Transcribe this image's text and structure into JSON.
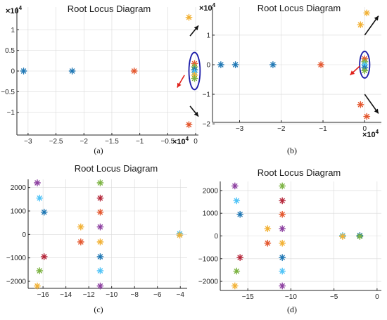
{
  "figure": {
    "panel_titles": [
      "Root Locus Diagram",
      "Root Locus Diagram",
      "Root Locus Diagram",
      "Root Locus Diagram"
    ],
    "captions": [
      "(a)",
      "(b)",
      "(c)",
      "(d)"
    ],
    "exponent_label": "×10⁴",
    "exponent_base": "×10",
    "exponent_power": "4"
  },
  "colors": {
    "blue": "#1f77b4",
    "orange": "#e4572e",
    "yellow": "#f2b134",
    "purple": "#8c3fa0",
    "green": "#7cb342",
    "cyan": "#4fc3f7",
    "crimson": "#b5273a",
    "red_arrow": "#e0211b",
    "black_arrow": "#111111",
    "ellipse": "#1a1aa8"
  },
  "chart_data": [
    {
      "id": "a",
      "type": "scatter",
      "xlim": [
        -3.2,
        0.05
      ],
      "ylim": [
        -1.55,
        1.55
      ],
      "xticks": [
        -3,
        -2.5,
        -2,
        -1.5,
        -1,
        -0.5,
        0
      ],
      "xtick_labels": [
        "−3",
        "−2.5",
        "−2",
        "−1.5",
        "−1",
        "−0.5",
        "0"
      ],
      "yticks": [
        -1,
        -0.5,
        0,
        0.5,
        1
      ],
      "ytick_labels": [
        "−1",
        "−0.5",
        "0",
        "0.5",
        "1"
      ],
      "points": [
        {
          "x": -3.08,
          "y": 0,
          "c": "blue"
        },
        {
          "x": -2.21,
          "y": 0,
          "c": "blue"
        },
        {
          "x": -1.1,
          "y": 0,
          "c": "orange"
        },
        {
          "x": -0.12,
          "y": 1.3,
          "c": "yellow"
        },
        {
          "x": -0.12,
          "y": -1.3,
          "c": "orange"
        },
        {
          "x": -0.02,
          "y": 0.18,
          "c": "orange"
        },
        {
          "x": -0.02,
          "y": 0.1,
          "c": "green"
        },
        {
          "x": -0.02,
          "y": 0.03,
          "c": "blue"
        },
        {
          "x": -0.02,
          "y": -0.03,
          "c": "cyan"
        },
        {
          "x": -0.02,
          "y": -0.1,
          "c": "yellow"
        },
        {
          "x": -0.02,
          "y": -0.18,
          "c": "green"
        }
      ],
      "ellipse": {
        "cx": -0.02,
        "cy": 0,
        "rx": 0.1,
        "ry": 0.45
      },
      "arrows": [
        {
          "x1": -0.1,
          "y1": 0.85,
          "x2": 0.05,
          "y2": 1.1,
          "c": "black_arrow"
        },
        {
          "x1": -0.1,
          "y1": -0.85,
          "x2": 0.05,
          "y2": -1.1,
          "c": "black_arrow"
        },
        {
          "x1": -0.2,
          "y1": -0.1,
          "x2": -0.33,
          "y2": -0.4,
          "c": "red_arrow"
        }
      ]
    },
    {
      "id": "b",
      "type": "scatter",
      "xlim": [
        -3.65,
        0.4
      ],
      "ylim": [
        -1.95,
        1.95
      ],
      "xticks": [
        -3,
        -2,
        -1,
        0
      ],
      "xtick_labels": [
        "−3",
        "−2",
        "−1",
        "0"
      ],
      "yticks": [
        -2,
        -1,
        0,
        1
      ],
      "ytick_labels": [
        "−2",
        "−1",
        "0",
        "1"
      ],
      "points": [
        {
          "x": -3.45,
          "y": 0,
          "c": "blue"
        },
        {
          "x": -3.1,
          "y": 0,
          "c": "blue"
        },
        {
          "x": -2.2,
          "y": 0,
          "c": "blue"
        },
        {
          "x": -1.05,
          "y": 0,
          "c": "orange"
        },
        {
          "x": 0.05,
          "y": 1.75,
          "c": "yellow"
        },
        {
          "x": -0.1,
          "y": 1.35,
          "c": "yellow"
        },
        {
          "x": -0.1,
          "y": -1.35,
          "c": "orange"
        },
        {
          "x": 0.05,
          "y": -1.75,
          "c": "orange"
        },
        {
          "x": 0.0,
          "y": 0.2,
          "c": "orange"
        },
        {
          "x": 0.0,
          "y": 0.1,
          "c": "green"
        },
        {
          "x": 0.0,
          "y": 0.0,
          "c": "cyan"
        },
        {
          "x": 0.0,
          "y": -0.1,
          "c": "blue"
        },
        {
          "x": 0.0,
          "y": -0.2,
          "c": "green"
        }
      ],
      "ellipse": {
        "cx": 0.0,
        "cy": 0,
        "rx": 0.12,
        "ry": 0.45
      },
      "arrows": [
        {
          "x1": 0.0,
          "y1": 1.0,
          "x2": 0.33,
          "y2": 1.65,
          "c": "black_arrow"
        },
        {
          "x1": 0.0,
          "y1": -1.0,
          "x2": 0.33,
          "y2": -1.65,
          "c": "black_arrow"
        },
        {
          "x1": -0.12,
          "y1": -0.05,
          "x2": -0.35,
          "y2": -0.35,
          "c": "red_arrow"
        }
      ]
    },
    {
      "id": "c",
      "type": "scatter",
      "xlim": [
        -17.3,
        -3.4
      ],
      "ylim": [
        -2300,
        2350
      ],
      "xticks": [
        -16,
        -14,
        -12,
        -10,
        -8,
        -6,
        -4
      ],
      "xtick_labels": [
        "−16",
        "−14",
        "−12",
        "−10",
        "−8",
        "−6",
        "−4"
      ],
      "yticks": [
        -2000,
        -1000,
        0,
        1000,
        2000
      ],
      "ytick_labels": [
        "−2000",
        "−1000",
        "0",
        "1000",
        "2000"
      ],
      "points": [
        {
          "x": -16.5,
          "y": 2200,
          "c": "purple"
        },
        {
          "x": -16.3,
          "y": 1550,
          "c": "cyan"
        },
        {
          "x": -15.9,
          "y": 950,
          "c": "blue"
        },
        {
          "x": -15.9,
          "y": -950,
          "c": "crimson"
        },
        {
          "x": -16.3,
          "y": -1550,
          "c": "green"
        },
        {
          "x": -16.5,
          "y": -2200,
          "c": "yellow"
        },
        {
          "x": -12.7,
          "y": 320,
          "c": "yellow"
        },
        {
          "x": -12.7,
          "y": -320,
          "c": "orange"
        },
        {
          "x": -11.0,
          "y": 2200,
          "c": "green"
        },
        {
          "x": -11.0,
          "y": 1550,
          "c": "crimson"
        },
        {
          "x": -11.0,
          "y": 950,
          "c": "orange"
        },
        {
          "x": -11.0,
          "y": 320,
          "c": "purple"
        },
        {
          "x": -11.0,
          "y": -320,
          "c": "yellow"
        },
        {
          "x": -11.0,
          "y": -950,
          "c": "blue"
        },
        {
          "x": -11.0,
          "y": -1550,
          "c": "cyan"
        },
        {
          "x": -11.0,
          "y": -2200,
          "c": "purple"
        },
        {
          "x": -4.05,
          "y": 30,
          "c": "cyan"
        },
        {
          "x": -4.05,
          "y": -30,
          "c": "yellow"
        }
      ]
    },
    {
      "id": "d",
      "type": "scatter",
      "xlim": [
        -18.2,
        0.5
      ],
      "ylim": [
        -2400,
        2400
      ],
      "xticks": [
        -15,
        -10,
        -5,
        0
      ],
      "xtick_labels": [
        "−15",
        "−10",
        "−5",
        "0"
      ],
      "yticks": [
        -2000,
        -1000,
        0,
        1000,
        2000
      ],
      "ytick_labels": [
        "−2000",
        "−1000",
        "0",
        "1000",
        "2000"
      ],
      "points": [
        {
          "x": -16.5,
          "y": 2200,
          "c": "purple"
        },
        {
          "x": -16.3,
          "y": 1550,
          "c": "cyan"
        },
        {
          "x": -15.9,
          "y": 950,
          "c": "blue"
        },
        {
          "x": -15.9,
          "y": -950,
          "c": "crimson"
        },
        {
          "x": -16.3,
          "y": -1550,
          "c": "green"
        },
        {
          "x": -16.5,
          "y": -2200,
          "c": "yellow"
        },
        {
          "x": -12.7,
          "y": 320,
          "c": "yellow"
        },
        {
          "x": -12.7,
          "y": -320,
          "c": "orange"
        },
        {
          "x": -11.0,
          "y": 2200,
          "c": "green"
        },
        {
          "x": -11.0,
          "y": 1550,
          "c": "crimson"
        },
        {
          "x": -11.0,
          "y": 950,
          "c": "orange"
        },
        {
          "x": -11.0,
          "y": 320,
          "c": "purple"
        },
        {
          "x": -11.0,
          "y": -320,
          "c": "yellow"
        },
        {
          "x": -11.0,
          "y": -950,
          "c": "blue"
        },
        {
          "x": -11.0,
          "y": -1550,
          "c": "cyan"
        },
        {
          "x": -11.0,
          "y": -2200,
          "c": "purple"
        },
        {
          "x": -4.0,
          "y": 20,
          "c": "cyan"
        },
        {
          "x": -4.0,
          "y": -20,
          "c": "yellow"
        },
        {
          "x": -2.0,
          "y": 20,
          "c": "blue"
        },
        {
          "x": -2.0,
          "y": -20,
          "c": "green"
        }
      ]
    }
  ]
}
